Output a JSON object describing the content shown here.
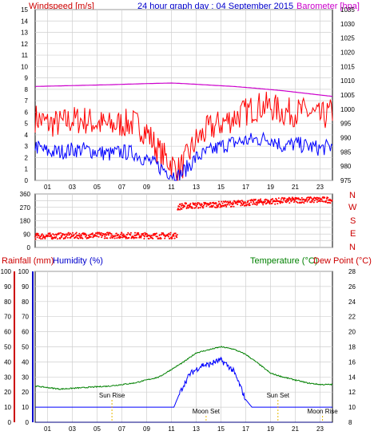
{
  "header": {
    "windspeed_label": "Windspeed [m/s]",
    "title": "24 hour graph day : 04 September 2015",
    "barometer_label": "Barometer [hpa]"
  },
  "wind_dir_labels": [
    "N",
    "W",
    "S",
    "E",
    "N"
  ],
  "lower_labels": {
    "rainfall": "Rainfall (mm)",
    "humidity": "Humidity (%)",
    "temperature": "Temperature (°C)",
    "dew_point": "Dew Point (°C)"
  },
  "annotations": {
    "sun_rise": "Sun Rise",
    "moon_set": "Moon Set",
    "sun_set": "Sun Set",
    "moon_rise": "Moon Rise"
  },
  "colors": {
    "wind_gust": "#ff0000",
    "wind_avg": "#0000ff",
    "barometer": "#cc00cc",
    "wind_dir": "#ff0000",
    "temperature": "#008000",
    "humidity": "#0000ff",
    "rainfall": "#000080",
    "label_red": "#cc0000",
    "label_blue": "#0000cc",
    "label_green": "#008000",
    "label_magenta": "#cc00cc",
    "annotation": "#e6b800"
  },
  "chart_data": [
    {
      "type": "line",
      "title": "24 hour graph day : 04 September 2015",
      "x_ticks": [
        "01",
        "03",
        "05",
        "07",
        "09",
        "11",
        "13",
        "15",
        "17",
        "19",
        "21",
        "23"
      ],
      "x_range": [
        0,
        24
      ],
      "y_left": {
        "label": "Windspeed [m/s]",
        "range": [
          0,
          15
        ],
        "ticks": [
          "0",
          "1",
          "2",
          "3",
          "4",
          "5",
          "6",
          "7",
          "8",
          "9",
          "10",
          "11",
          "12",
          "13",
          "14",
          "15"
        ]
      },
      "y_right": {
        "label": "Barometer [hpa]",
        "range": [
          975,
          1035
        ],
        "ticks": [
          "975",
          "980",
          "985",
          "990",
          "995",
          "1000",
          "1005",
          "1010",
          "1015",
          "1020",
          "1025",
          "1030",
          "1035"
        ]
      },
      "series": [
        {
          "name": "Wind gust",
          "x": [
            0,
            1,
            2,
            3,
            4,
            5,
            6,
            7,
            8,
            9,
            10,
            11,
            11.5,
            12,
            13,
            14,
            15,
            16,
            17,
            18,
            19,
            20,
            21,
            22,
            23,
            24
          ],
          "values": [
            5.5,
            5,
            5,
            5.3,
            5.3,
            5,
            4.8,
            5,
            5,
            4.3,
            2.5,
            1.5,
            0.8,
            1.5,
            3.5,
            4.5,
            5,
            5.5,
            6,
            6.5,
            6.5,
            6,
            6,
            6,
            5.5,
            6
          ]
        },
        {
          "name": "Wind speed",
          "x": [
            0,
            1,
            2,
            3,
            4,
            5,
            6,
            7,
            8,
            9,
            10,
            11,
            11.5,
            12,
            13,
            14,
            15,
            16,
            17,
            18,
            19,
            20,
            21,
            22,
            23,
            24
          ],
          "values": [
            3,
            2.5,
            2.5,
            2.7,
            2.7,
            2.5,
            2.3,
            2.5,
            2.4,
            1.8,
            1.2,
            0.6,
            0.3,
            0.8,
            2,
            2.5,
            3,
            3.3,
            3.5,
            3.6,
            3.7,
            3,
            3.2,
            3,
            2.8,
            3
          ]
        },
        {
          "name": "Barometer",
          "x": [
            0,
            3,
            6,
            9,
            11,
            12,
            14,
            16,
            18,
            20,
            22,
            24
          ],
          "values": [
            1008,
            1008.3,
            1008.6,
            1009,
            1009.2,
            1009,
            1008.5,
            1008,
            1007.3,
            1006.5,
            1005.5,
            1004.5
          ]
        }
      ]
    },
    {
      "type": "scatter",
      "x_ticks": [
        "01",
        "03",
        "05",
        "07",
        "09",
        "11",
        "13",
        "15",
        "17",
        "19",
        "21",
        "23"
      ],
      "x_range": [
        0,
        24
      ],
      "y_range": [
        0,
        360
      ],
      "y_ticks": [
        "0",
        "45",
        "90",
        "135",
        "180",
        "225",
        "270",
        "315",
        "360"
      ],
      "series": [
        {
          "name": "Wind direction",
          "x": [
            0,
            2,
            4,
            6,
            8,
            10,
            11.3,
            11.5,
            12,
            14,
            16,
            18,
            20,
            22,
            24
          ],
          "values": [
            75,
            78,
            80,
            82,
            80,
            78,
            80,
            270,
            280,
            285,
            295,
            305,
            315,
            320,
            320
          ]
        }
      ]
    },
    {
      "type": "line",
      "x_ticks": [
        "01",
        "03",
        "05",
        "07",
        "09",
        "11",
        "13",
        "15",
        "17",
        "19",
        "21",
        "23"
      ],
      "x_range": [
        0,
        24
      ],
      "y_left": {
        "label": "Rainfall (mm) / Humidity (%)",
        "range": [
          0,
          100
        ],
        "ticks": [
          "0",
          "10",
          "20",
          "30",
          "40",
          "50",
          "60",
          "70",
          "80",
          "90",
          "100"
        ]
      },
      "y_right": {
        "label": "Temperature (°C) / Dew Point (°C)",
        "range": [
          8,
          28
        ],
        "ticks": [
          "8",
          "10",
          "12",
          "14",
          "16",
          "18",
          "20",
          "22",
          "24",
          "26",
          "28"
        ]
      },
      "series": [
        {
          "name": "Temperature",
          "x": [
            0,
            2,
            4,
            6,
            8,
            10,
            11,
            12,
            13,
            14,
            15,
            16,
            17,
            18,
            19,
            20,
            21,
            22,
            23,
            24
          ],
          "values": [
            12.8,
            12.4,
            12.6,
            12.8,
            13.2,
            14,
            15,
            16,
            17.2,
            17.6,
            18,
            17.7,
            17,
            15.8,
            14.5,
            14,
            13.6,
            13.2,
            13,
            13
          ]
        },
        {
          "name": "Humidity",
          "x": [
            0,
            11.2,
            11.6,
            12,
            12.5,
            13,
            13.5,
            14,
            14.5,
            15,
            15.5,
            16,
            16.5,
            17,
            17.5,
            24
          ],
          "values": [
            10,
            10,
            18,
            25,
            32,
            35,
            38,
            38,
            40,
            41,
            38,
            34,
            25,
            15,
            10,
            10
          ]
        },
        {
          "name": "Rainfall",
          "x": [
            0,
            24
          ],
          "values": [
            0,
            0
          ]
        }
      ],
      "annotations": [
        {
          "label": "Sun Rise",
          "x": 6.2
        },
        {
          "label": "Moon Set",
          "x": 13.8
        },
        {
          "label": "Sun Set",
          "x": 19.6
        },
        {
          "label": "Moon Rise",
          "x": 23.2
        }
      ]
    }
  ]
}
